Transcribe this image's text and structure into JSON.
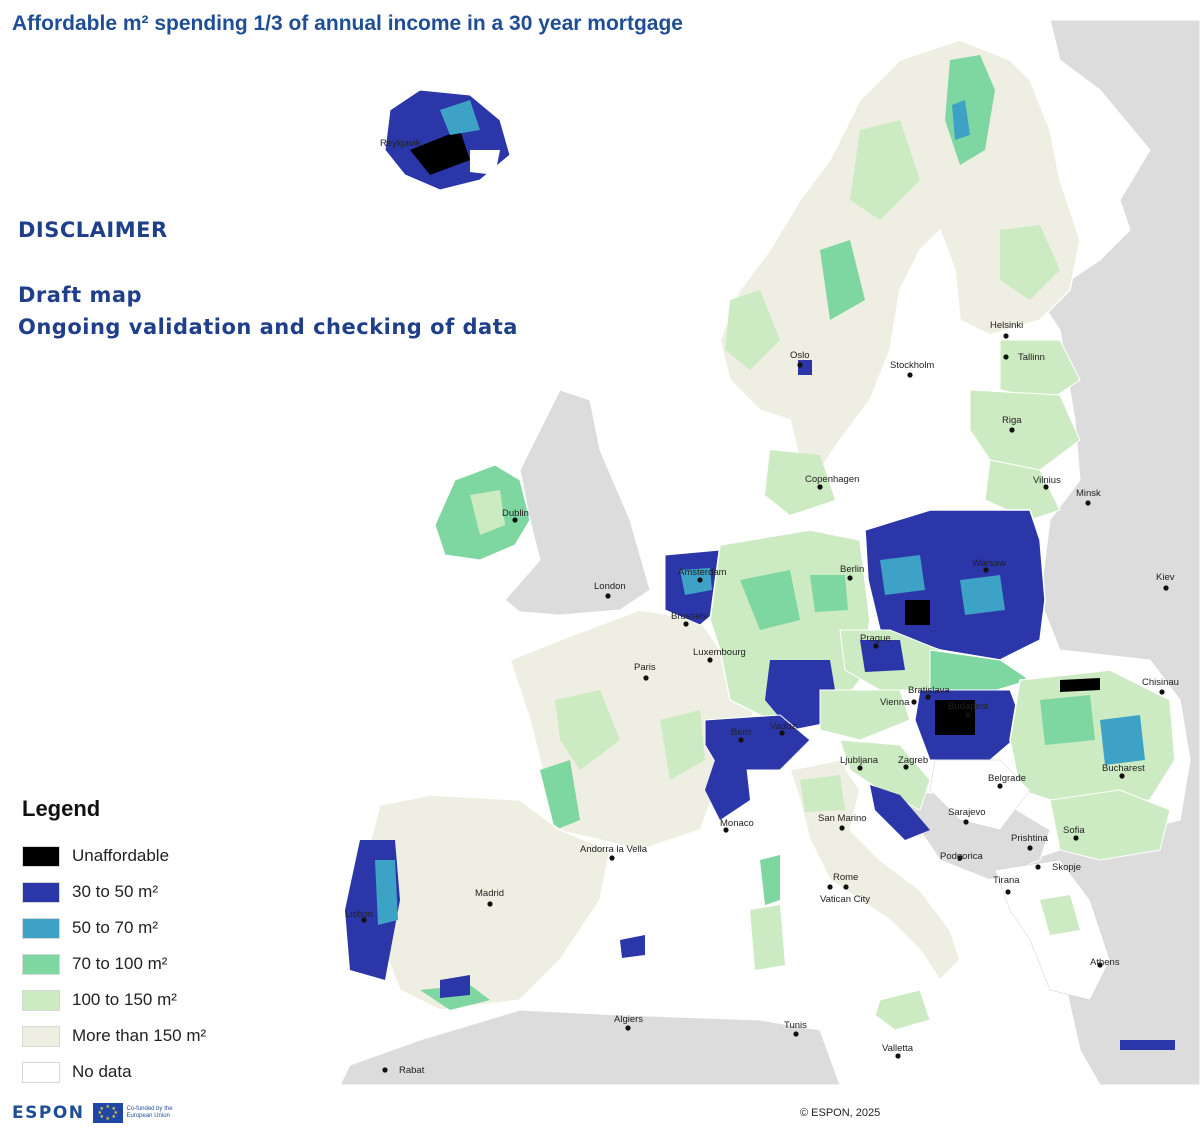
{
  "title": "Affordable m² spending 1/3 of annual income in a 30 year mortgage",
  "disclaimer": {
    "heading": "DISCLAIMER",
    "line1": "Draft map",
    "line2": "Ongoing validation and checking of data"
  },
  "legend": {
    "title": "Legend",
    "items": [
      {
        "label": "Unaffordable",
        "color": "#000000"
      },
      {
        "label": "30 to 50 m²",
        "color": "#2b36a8"
      },
      {
        "label": "50 to 70 m²",
        "color": "#3ea2c6"
      },
      {
        "label": "70 to 100 m²",
        "color": "#7ed6a0"
      },
      {
        "label": "100 to 150 m²",
        "color": "#cdebc2"
      },
      {
        "label": "More than 150  m²",
        "color": "#eeeee2"
      },
      {
        "label": "No data",
        "color": "#ffffff"
      }
    ]
  },
  "cities": [
    {
      "name": "Reykjavik",
      "dot": false
    },
    {
      "name": "Helsinki",
      "dot": true
    },
    {
      "name": "Tallinn",
      "dot": true
    },
    {
      "name": "Oslo",
      "dot": true
    },
    {
      "name": "Stockholm",
      "dot": true
    },
    {
      "name": "Riga",
      "dot": true
    },
    {
      "name": "Copenhagen",
      "dot": true
    },
    {
      "name": "Vilnius",
      "dot": true
    },
    {
      "name": "Minsk",
      "dot": true
    },
    {
      "name": "Dublin",
      "dot": true
    },
    {
      "name": "Amsterdam",
      "dot": true
    },
    {
      "name": "Berlin",
      "dot": true
    },
    {
      "name": "Warsaw",
      "dot": true
    },
    {
      "name": "London",
      "dot": true
    },
    {
      "name": "Brussels",
      "dot": true
    },
    {
      "name": "Kiev",
      "dot": true
    },
    {
      "name": "Prague",
      "dot": true
    },
    {
      "name": "Luxembourg",
      "dot": true
    },
    {
      "name": "Paris",
      "dot": true
    },
    {
      "name": "Chisinau",
      "dot": true
    },
    {
      "name": "Bratislava",
      "dot": true
    },
    {
      "name": "Vienna",
      "dot": true
    },
    {
      "name": "Budapest",
      "dot": true
    },
    {
      "name": "Vaduz",
      "dot": true
    },
    {
      "name": "Bern",
      "dot": true
    },
    {
      "name": "Ljubljana",
      "dot": true
    },
    {
      "name": "Zagreb",
      "dot": true
    },
    {
      "name": "Bucharest",
      "dot": true
    },
    {
      "name": "Belgrade",
      "dot": true
    },
    {
      "name": "Sarajevo",
      "dot": true
    },
    {
      "name": "Monaco",
      "dot": true
    },
    {
      "name": "San Marino",
      "dot": true
    },
    {
      "name": "Andorra la Vella",
      "dot": true
    },
    {
      "name": "Prishtina",
      "dot": true
    },
    {
      "name": "Sofia",
      "dot": true
    },
    {
      "name": "Podgorica",
      "dot": true
    },
    {
      "name": "Skopje",
      "dot": true
    },
    {
      "name": "Rome",
      "dot": true
    },
    {
      "name": "Vatican City",
      "dot": true
    },
    {
      "name": "Tirana",
      "dot": true
    },
    {
      "name": "Madrid",
      "dot": true
    },
    {
      "name": "Lisbon",
      "dot": true
    },
    {
      "name": "Athens",
      "dot": true
    },
    {
      "name": "Algiers",
      "dot": true
    },
    {
      "name": "Tunis",
      "dot": true
    },
    {
      "name": "Valletta",
      "dot": true
    },
    {
      "name": "Rabat",
      "dot": true
    }
  ],
  "footer": {
    "logo_text": "ESPON",
    "cofunded_text": "Co-funded by the European Union",
    "copyright": "© ESPON, 2025"
  }
}
